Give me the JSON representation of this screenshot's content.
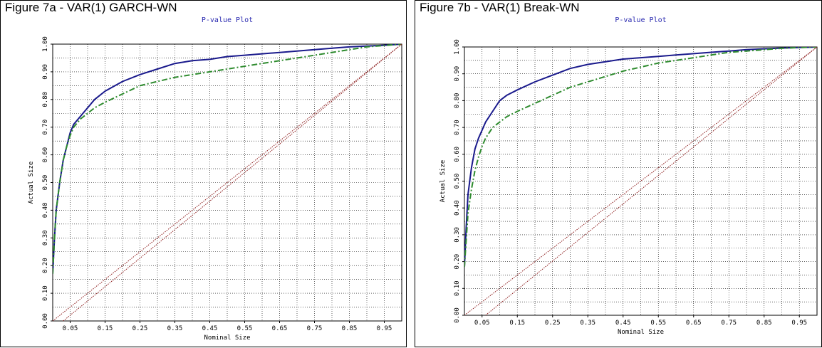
{
  "chart_data": [
    {
      "type": "line",
      "figure_title": "Figure 7a - VAR(1) GARCH-WN",
      "title": "P-value Plot",
      "xlabel": "Nominal Size",
      "ylabel": "Actual Size",
      "xlim": [
        0,
        1
      ],
      "ylim": [
        0,
        1
      ],
      "grid": true,
      "x_ticks": [
        "0.05",
        "0.15",
        "0.25",
        "0.35",
        "0.45",
        "0.55",
        "0.65",
        "0.75",
        "0.85",
        "0.95"
      ],
      "y_ticks": [
        "0.00",
        "0.10",
        "0.20",
        "0.30",
        "0.40",
        "0.50",
        "0.60",
        "0.70",
        "0.80",
        "0.90",
        "1.00"
      ],
      "series": [
        {
          "color": "#1a1a8c",
          "style": "solid",
          "x": [
            0,
            0.005,
            0.01,
            0.02,
            0.03,
            0.04,
            0.05,
            0.06,
            0.08,
            0.1,
            0.12,
            0.15,
            0.2,
            0.25,
            0.3,
            0.35,
            0.4,
            0.45,
            0.5,
            0.55,
            0.6,
            0.65,
            0.7,
            0.75,
            0.8,
            0.85,
            0.9,
            0.95,
            1.0
          ],
          "y": [
            0.17,
            0.3,
            0.4,
            0.5,
            0.58,
            0.63,
            0.68,
            0.71,
            0.74,
            0.77,
            0.8,
            0.83,
            0.865,
            0.89,
            0.91,
            0.93,
            0.94,
            0.945,
            0.955,
            0.96,
            0.965,
            0.97,
            0.975,
            0.98,
            0.985,
            0.99,
            0.993,
            0.996,
            1.0
          ]
        },
        {
          "color": "#2e8b2e",
          "style": "dashdot",
          "x": [
            0,
            0.005,
            0.01,
            0.02,
            0.03,
            0.04,
            0.05,
            0.06,
            0.08,
            0.1,
            0.12,
            0.15,
            0.2,
            0.25,
            0.3,
            0.35,
            0.4,
            0.45,
            0.5,
            0.55,
            0.6,
            0.65,
            0.7,
            0.75,
            0.8,
            0.85,
            0.9,
            0.95,
            1.0
          ],
          "y": [
            0.17,
            0.3,
            0.4,
            0.5,
            0.58,
            0.63,
            0.67,
            0.7,
            0.73,
            0.75,
            0.77,
            0.79,
            0.82,
            0.85,
            0.865,
            0.88,
            0.89,
            0.9,
            0.91,
            0.92,
            0.93,
            0.94,
            0.95,
            0.96,
            0.97,
            0.98,
            0.99,
            0.995,
            1.0
          ]
        },
        {
          "color": "#8b1a1a",
          "style": "dotted",
          "x": [
            0,
            1
          ],
          "y": [
            0,
            1
          ]
        },
        {
          "color": "#8b1a1a",
          "style": "dotted",
          "x": [
            0.03,
            1
          ],
          "y": [
            0,
            1
          ]
        }
      ]
    },
    {
      "type": "line",
      "figure_title": "Figure 7b - VAR(1) Break-WN",
      "title": "P-value Plot",
      "xlabel": "Nominal Size",
      "ylabel": "Actual Size",
      "xlim": [
        0,
        1
      ],
      "ylim": [
        0,
        1
      ],
      "grid": true,
      "x_ticks": [
        "0.05",
        "0.15",
        "0.25",
        "0.35",
        "0.45",
        "0.55",
        "0.65",
        "0.75",
        "0.85",
        "0.95"
      ],
      "y_ticks": [
        "0.00",
        "0.10",
        "0.20",
        "0.30",
        "0.40",
        "0.50",
        "0.60",
        "0.70",
        "0.80",
        "0.90",
        "1.00"
      ],
      "series": [
        {
          "color": "#1a1a8c",
          "style": "solid",
          "x": [
            0,
            0.005,
            0.01,
            0.02,
            0.03,
            0.04,
            0.05,
            0.06,
            0.08,
            0.1,
            0.12,
            0.15,
            0.2,
            0.25,
            0.3,
            0.35,
            0.4,
            0.45,
            0.5,
            0.55,
            0.6,
            0.65,
            0.7,
            0.75,
            0.8,
            0.85,
            0.9,
            0.95,
            1.0
          ],
          "y": [
            0.18,
            0.33,
            0.45,
            0.55,
            0.62,
            0.66,
            0.69,
            0.72,
            0.76,
            0.8,
            0.82,
            0.84,
            0.87,
            0.895,
            0.92,
            0.935,
            0.945,
            0.955,
            0.96,
            0.965,
            0.97,
            0.975,
            0.98,
            0.985,
            0.99,
            0.993,
            0.996,
            0.998,
            1.0
          ]
        },
        {
          "color": "#2e8b2e",
          "style": "dashdot",
          "x": [
            0,
            0.005,
            0.01,
            0.02,
            0.03,
            0.04,
            0.05,
            0.06,
            0.08,
            0.1,
            0.12,
            0.15,
            0.2,
            0.25,
            0.3,
            0.35,
            0.4,
            0.45,
            0.5,
            0.55,
            0.6,
            0.65,
            0.7,
            0.75,
            0.8,
            0.85,
            0.9,
            0.95,
            1.0
          ],
          "y": [
            0.18,
            0.28,
            0.38,
            0.47,
            0.54,
            0.59,
            0.63,
            0.66,
            0.7,
            0.72,
            0.74,
            0.76,
            0.79,
            0.82,
            0.85,
            0.87,
            0.89,
            0.91,
            0.925,
            0.94,
            0.95,
            0.96,
            0.97,
            0.98,
            0.985,
            0.99,
            0.995,
            0.998,
            1.0
          ]
        },
        {
          "color": "#8b1a1a",
          "style": "dotted",
          "x": [
            0,
            1
          ],
          "y": [
            0,
            1
          ]
        },
        {
          "color": "#8b1a1a",
          "style": "dotted",
          "x": [
            0.06,
            1
          ],
          "y": [
            0,
            1
          ]
        }
      ]
    }
  ]
}
